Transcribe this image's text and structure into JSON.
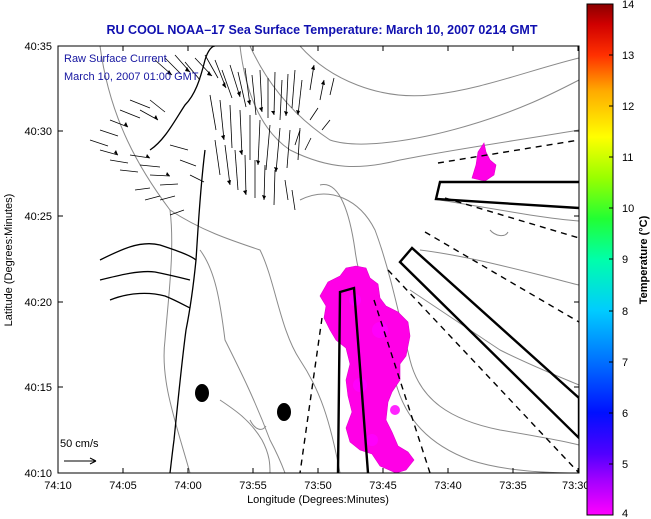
{
  "title": "RU COOL  NOAA–17  Sea Surface Temperature:  March 10, 2007 0214 GMT",
  "annotations": {
    "line1": "Raw Surface Current",
    "line2": "March 10, 2007 01:00 GMT"
  },
  "axes": {
    "xlabel": "Longitude (Degrees:Minutes)",
    "ylabel": "Latitude (Degrees:Minutes)",
    "xticks": [
      "74:10",
      "74:05",
      "74:00",
      "73:55",
      "73:50",
      "73:45",
      "73:40",
      "73:35",
      "73:30"
    ],
    "yticks": [
      "40:35",
      "40:30",
      "40:25",
      "40:20",
      "40:15",
      "40:10"
    ]
  },
  "scale_label": "50 cm/s",
  "colorbar": {
    "label": "Temperature (°C)",
    "ticks": [
      "14",
      "13",
      "12",
      "11",
      "10",
      "9",
      "8",
      "7",
      "6",
      "5",
      "4"
    ],
    "min": 4,
    "max": 14
  },
  "colors": {
    "title": "#1010b0",
    "sst_patch": "#ff00e6",
    "annotation": "#1515a0"
  }
}
